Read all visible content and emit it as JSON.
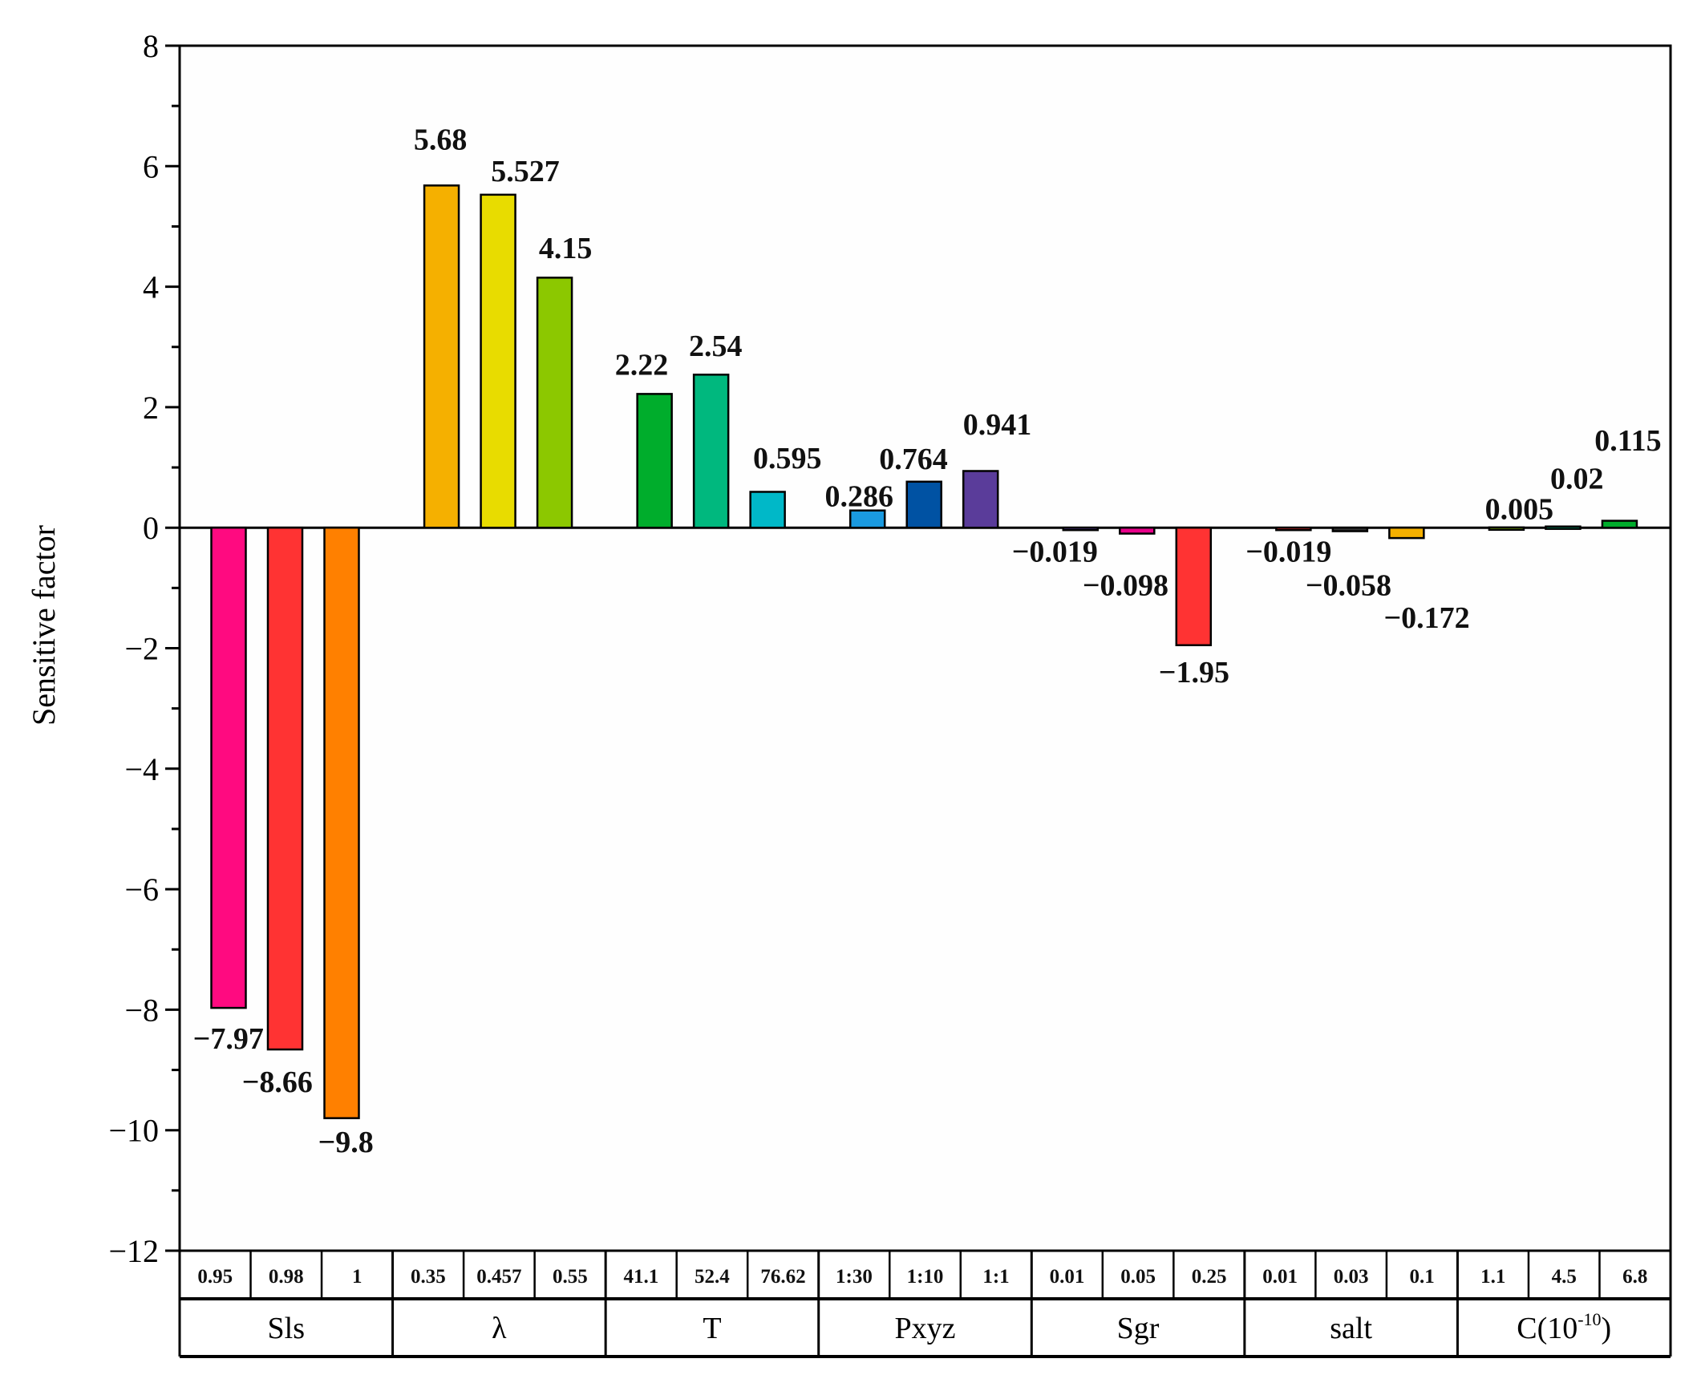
{
  "chart_data": {
    "type": "bar",
    "title": "",
    "xlabel": "",
    "ylabel": "Sensitive factor",
    "ylim": [
      -12,
      8
    ],
    "yticks": [
      "8",
      "6",
      "4",
      "2",
      "0",
      "−2",
      "−4",
      "−6",
      "−8",
      "−10",
      "−12"
    ],
    "ytick_values": [
      8,
      6,
      4,
      2,
      0,
      -2,
      -4,
      -6,
      -8,
      -10,
      -12
    ],
    "grid": false,
    "groups": [
      {
        "name": "Sls",
        "levels": [
          "0.95",
          "0.98",
          "1"
        ],
        "values": [
          -7.97,
          -8.66,
          -9.8
        ],
        "labels": [
          "−7.97",
          "−8.66",
          "−9.8"
        ],
        "colors": [
          "#ff0a80",
          "#ff3333",
          "#ff8000"
        ]
      },
      {
        "name": "λ",
        "levels": [
          "0.35",
          "0.457",
          "0.55"
        ],
        "values": [
          5.68,
          5.527,
          4.15
        ],
        "labels": [
          "5.68",
          "5.527",
          "4.15"
        ],
        "colors": [
          "#f5b000",
          "#e8dc00",
          "#8cc800"
        ]
      },
      {
        "name": "T",
        "levels": [
          "41.1",
          "52.4",
          "76.62"
        ],
        "values": [
          2.22,
          2.54,
          0.595
        ],
        "labels": [
          "2.22",
          "2.54",
          "0.595"
        ],
        "colors": [
          "#00ad2c",
          "#00b87e",
          "#00b8c8"
        ]
      },
      {
        "name": "Pxyz",
        "levels": [
          "1:30",
          "1:10",
          "1:1"
        ],
        "values": [
          0.286,
          0.764,
          0.941
        ],
        "labels": [
          "0.286",
          "0.764",
          "0.941"
        ],
        "colors": [
          "#1a9ae0",
          "#0052a3",
          "#5a3c9a"
        ]
      },
      {
        "name": "Sgr",
        "levels": [
          "0.01",
          "0.05",
          "0.25"
        ],
        "values": [
          -0.019,
          -0.098,
          -1.95
        ],
        "labels": [
          "−0.019",
          "−0.098",
          "−1.95"
        ],
        "colors": [
          "#5a3c9a",
          "#e8008a",
          "#ff3333"
        ]
      },
      {
        "name": "salt",
        "levels": [
          "0.01",
          "0.03",
          "0.1"
        ],
        "values": [
          -0.019,
          -0.058,
          -0.172
        ],
        "labels": [
          "−0.019",
          "−0.058",
          "−0.172"
        ],
        "colors": [
          "#ff3333",
          "#333333",
          "#f5b000"
        ]
      },
      {
        "name": "C(10",
        "name_sup": "-10",
        "name_tail": ")",
        "levels": [
          "1.1",
          "4.5",
          "6.8"
        ],
        "values": [
          0.005,
          0.02,
          0.115
        ],
        "labels": [
          "0.005",
          "0.02",
          "0.115"
        ],
        "colors": [
          "#8cc800",
          "#00b87e",
          "#00ad2c"
        ]
      }
    ]
  }
}
